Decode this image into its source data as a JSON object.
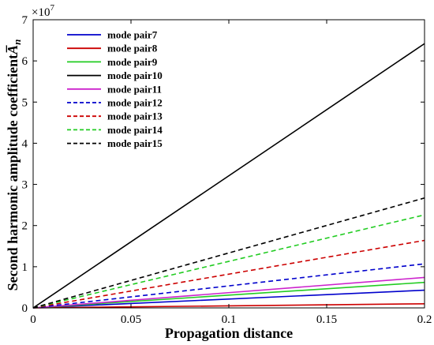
{
  "chart_data": {
    "type": "line",
    "xlabel": "Propagation distance",
    "ylabel": "Second harmonic amplitude coefficient",
    "ylabel_symbol": "A̅",
    "ylabel_subscript": "n",
    "y_multiplier_base": "×10",
    "y_multiplier_exp": "7",
    "xlim": [
      0,
      0.2
    ],
    "ylim": [
      0,
      7
    ],
    "x_ticks": [
      "0",
      "0.05",
      "0.1",
      "0.15",
      "0.2"
    ],
    "y_ticks": [
      "0",
      "1",
      "2",
      "3",
      "4",
      "5",
      "6",
      "7"
    ],
    "legend_position": "top-left",
    "grid": false,
    "series": [
      {
        "name": "mode pair7",
        "color": "#0000cc",
        "dash": "solid",
        "x": [
          0,
          0.2
        ],
        "y": [
          0,
          0.43
        ]
      },
      {
        "name": "mode pair8",
        "color": "#cc0000",
        "dash": "solid",
        "x": [
          0,
          0.2
        ],
        "y": [
          0,
          0.1
        ]
      },
      {
        "name": "mode pair9",
        "color": "#22cc22",
        "dash": "solid",
        "x": [
          0,
          0.2
        ],
        "y": [
          0,
          0.62
        ]
      },
      {
        "name": "mode pair10",
        "color": "#000000",
        "dash": "solid",
        "x": [
          0,
          0.2
        ],
        "y": [
          0,
          6.42
        ]
      },
      {
        "name": "mode pair11",
        "color": "#cc22cc",
        "dash": "solid",
        "x": [
          0,
          0.2
        ],
        "y": [
          0,
          0.74
        ]
      },
      {
        "name": "mode pair12",
        "color": "#0000cc",
        "dash": "dashed",
        "x": [
          0,
          0.2
        ],
        "y": [
          0,
          1.07
        ]
      },
      {
        "name": "mode pair13",
        "color": "#cc0000",
        "dash": "dashed",
        "x": [
          0,
          0.2
        ],
        "y": [
          0,
          1.64
        ]
      },
      {
        "name": "mode pair14",
        "color": "#22cc22",
        "dash": "dashed",
        "x": [
          0,
          0.2
        ],
        "y": [
          0,
          2.26
        ]
      },
      {
        "name": "mode pair15",
        "color": "#000000",
        "dash": "dashed",
        "x": [
          0,
          0.2
        ],
        "y": [
          0,
          2.67
        ]
      }
    ]
  }
}
